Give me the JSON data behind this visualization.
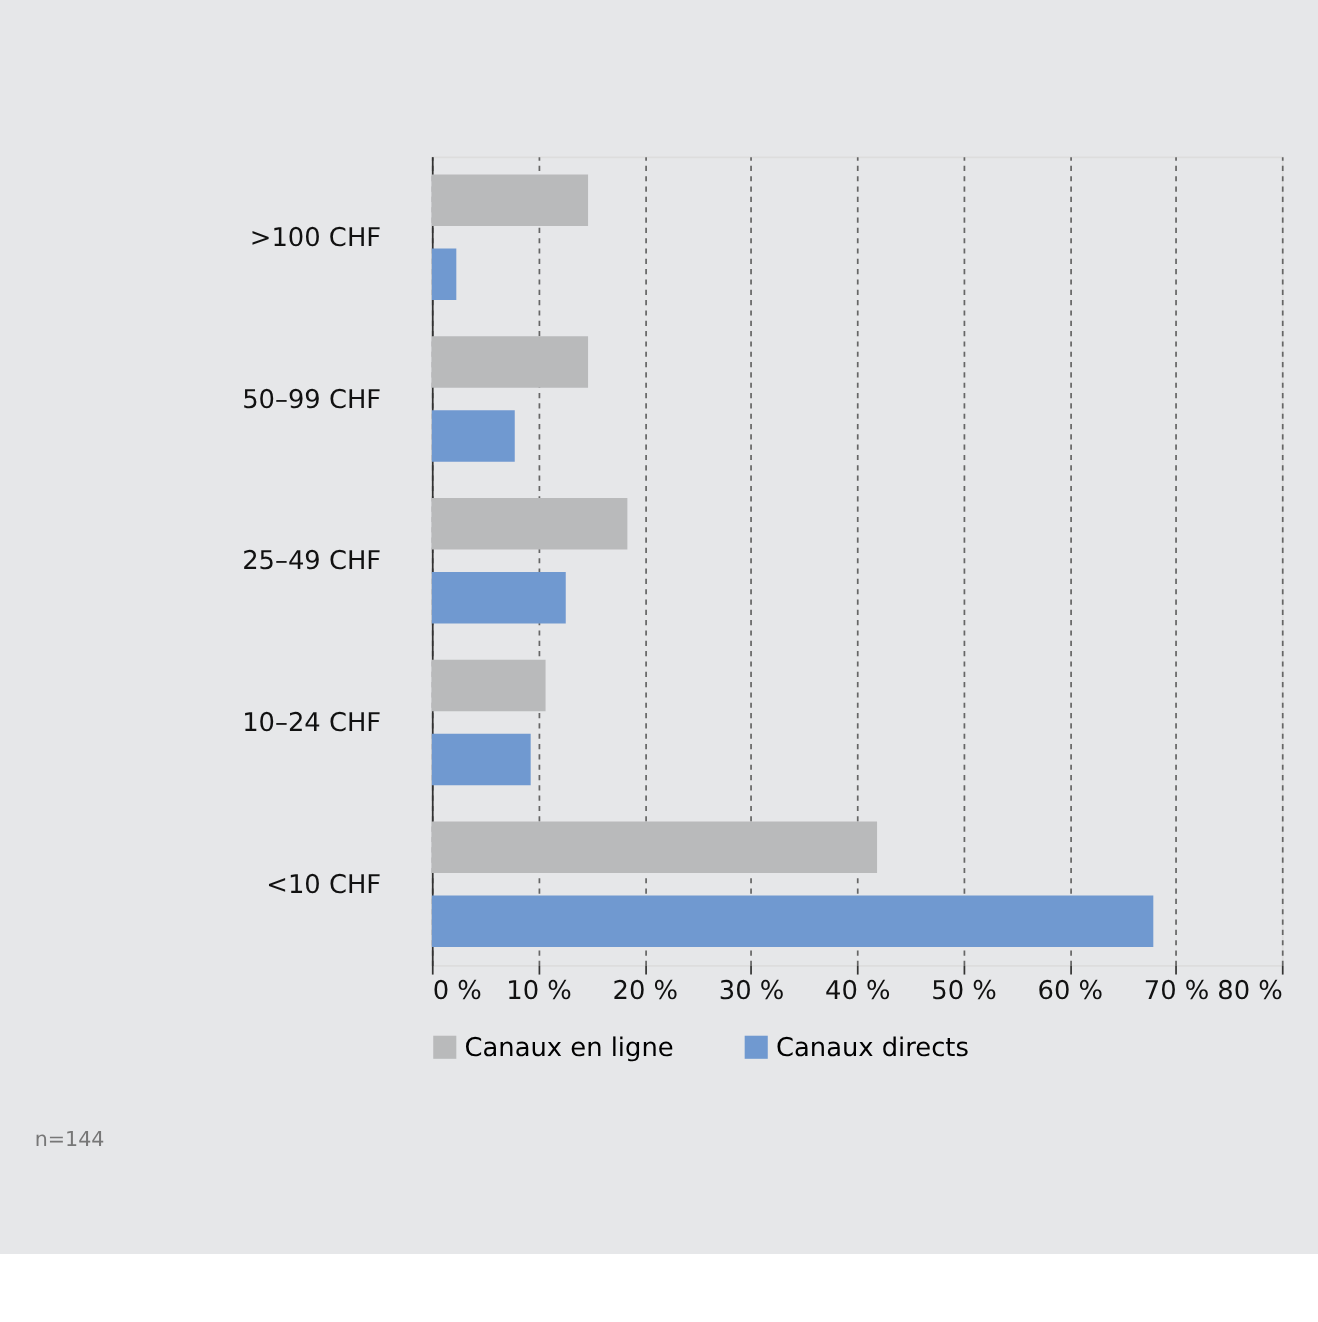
{
  "chart_data": {
    "type": "bar",
    "orientation": "horizontal",
    "categories": [
      ">100 CHF",
      "50–99 CHF",
      "25–49 CHF",
      "10–24 CHF",
      "<10 CHF"
    ],
    "series": [
      {
        "name": "Canaux en ligne",
        "color": "#b9babb",
        "values": [
          14.7,
          14.7,
          18.4,
          10.7,
          41.9
        ]
      },
      {
        "name": "Canaux directs",
        "color": "#7099d0",
        "values": [
          2.3,
          7.8,
          12.6,
          9.3,
          67.9
        ]
      }
    ],
    "xlim": [
      0,
      80
    ],
    "xticks": [
      {
        "value": 0,
        "label": "0 %"
      },
      {
        "value": 10,
        "label": "10 %"
      },
      {
        "value": 20,
        "label": "20 %"
      },
      {
        "value": 30,
        "label": "30 %"
      },
      {
        "value": 40,
        "label": "40 %"
      },
      {
        "value": 50,
        "label": "50 %"
      },
      {
        "value": 60,
        "label": "60 %"
      },
      {
        "value": 70,
        "label": "70 %"
      },
      {
        "value": 80,
        "label": "80 %"
      }
    ],
    "grid": "x",
    "legend": "bottom left",
    "annotations": [
      "n=144"
    ]
  }
}
